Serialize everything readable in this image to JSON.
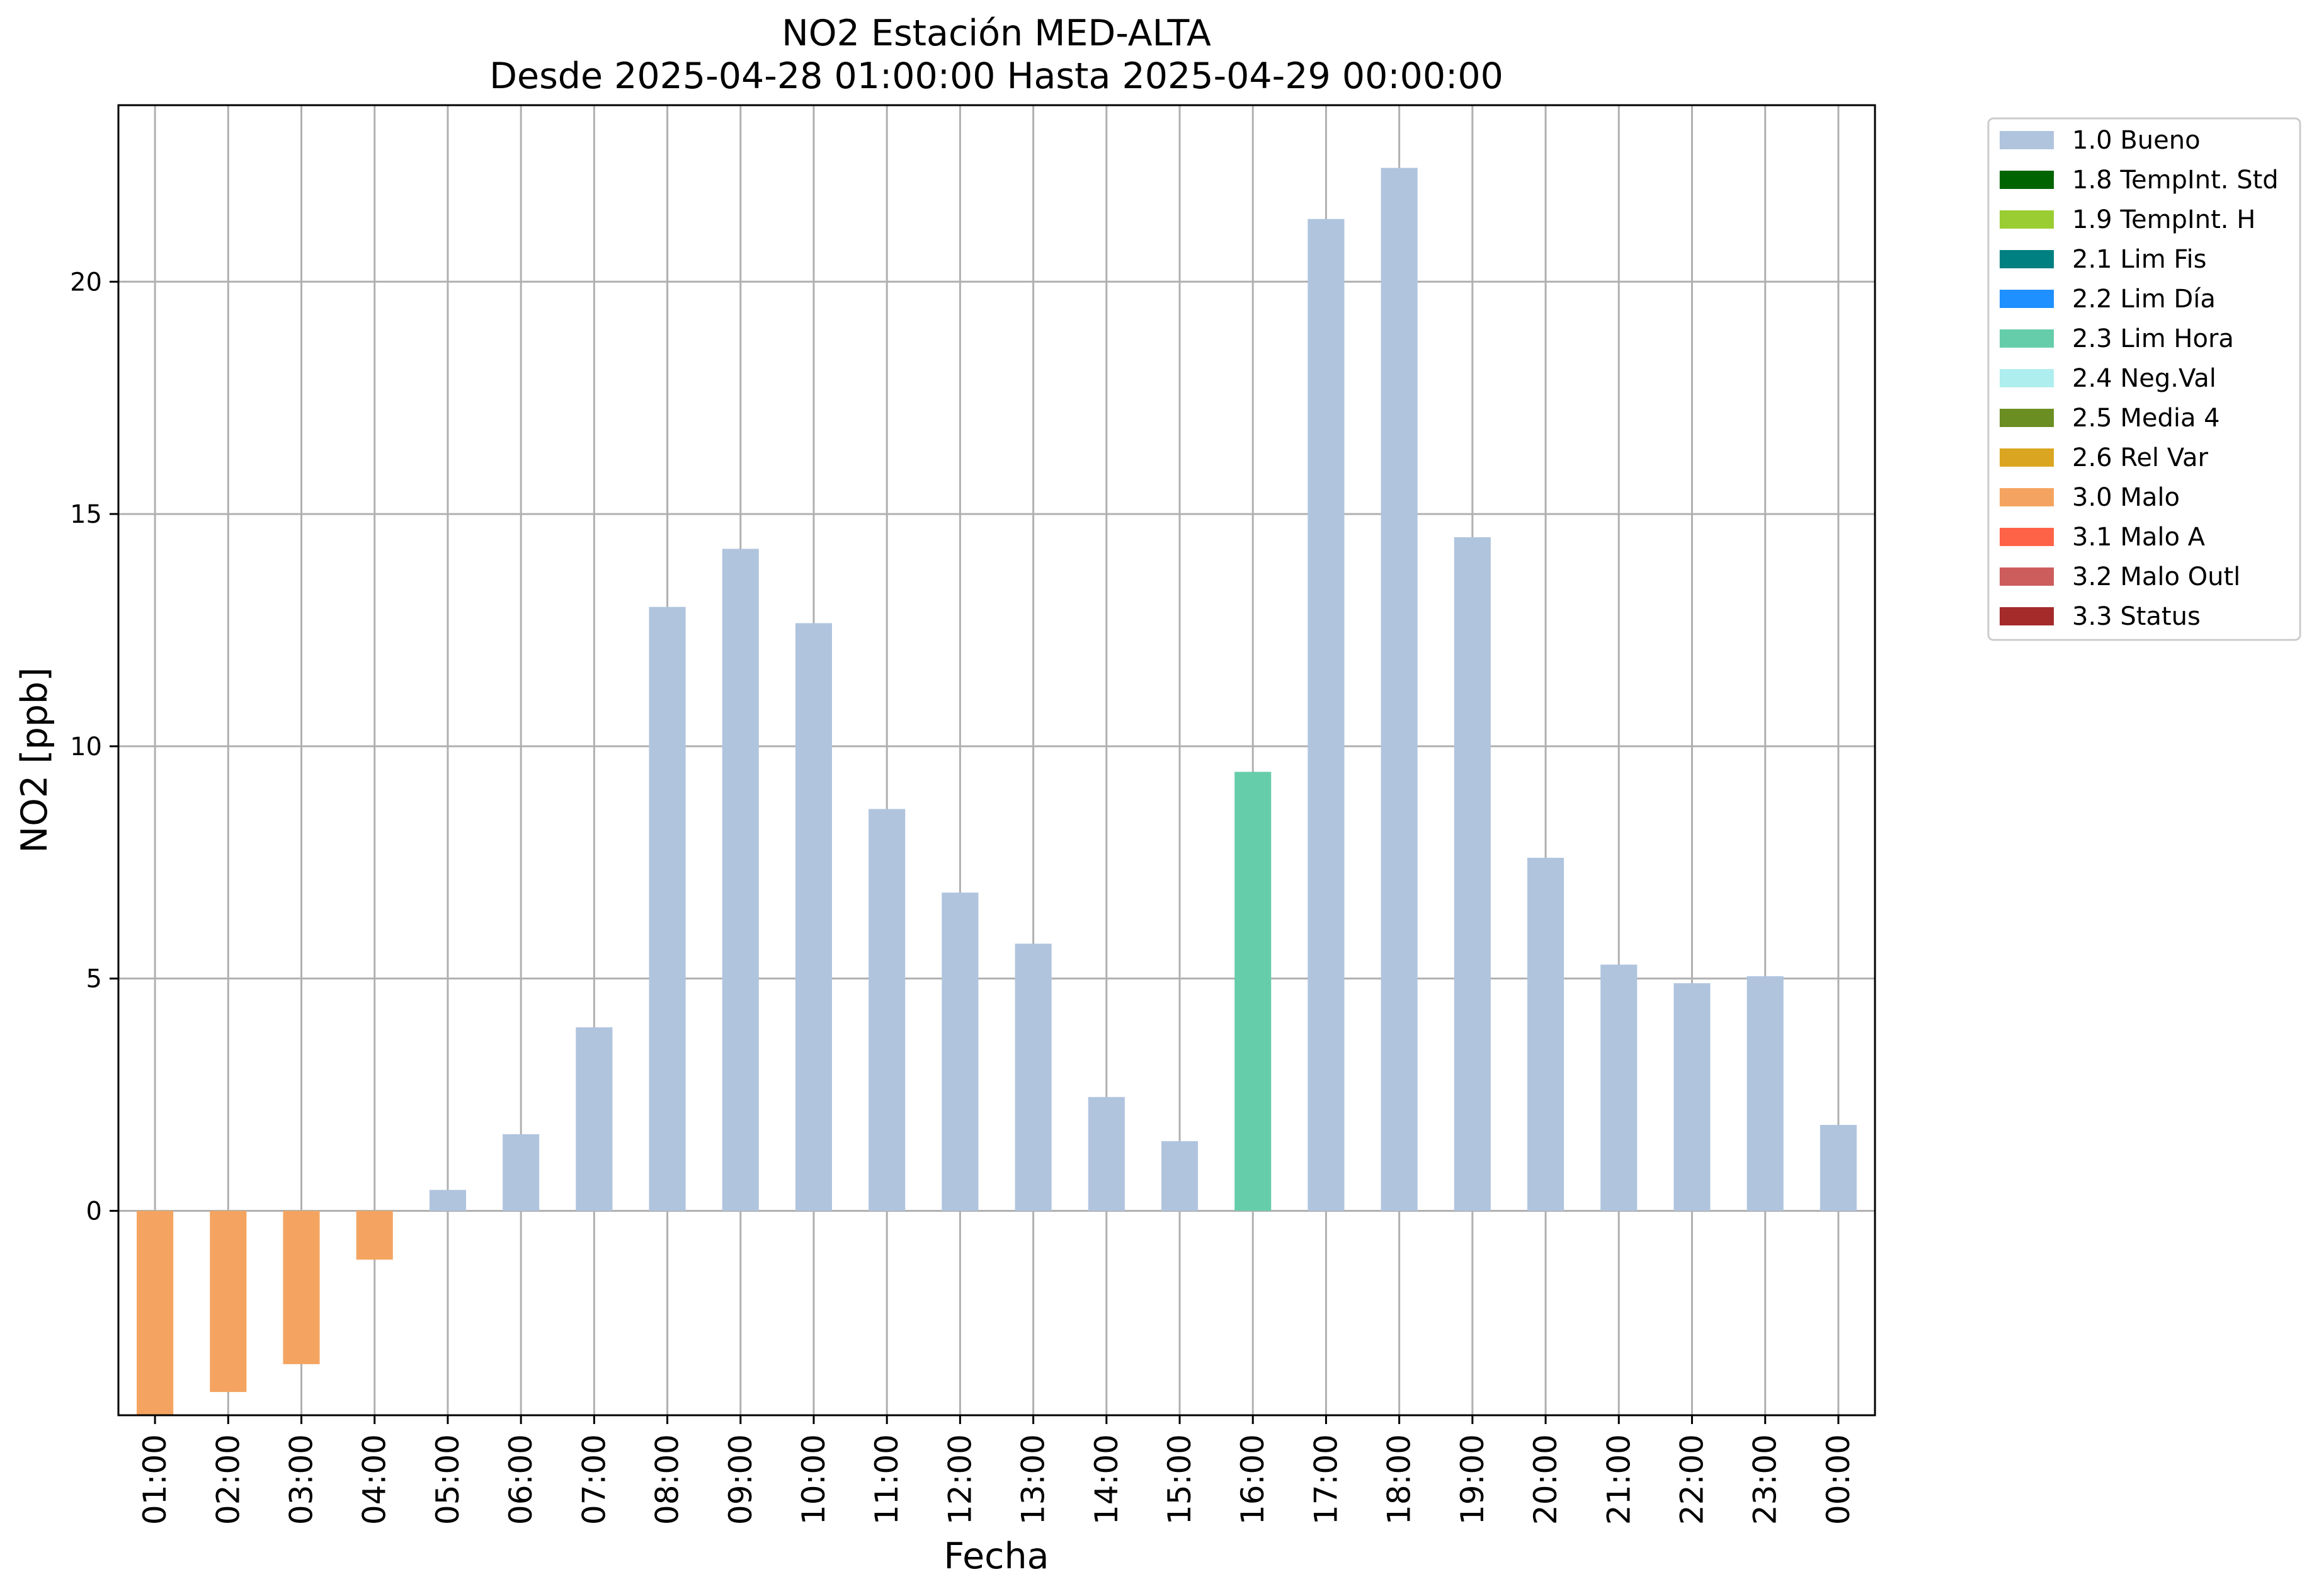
{
  "chart_data": {
    "type": "bar",
    "title": "NO2 Estación MED-ALTA",
    "subtitle": "Desde 2025-04-28 01:00:00 Hasta 2025-04-29 00:00:00",
    "xlabel": "Fecha",
    "ylabel": "NO2 [ppb]",
    "ylim": [
      -4.4,
      23.8
    ],
    "yticks": [
      0,
      5,
      10,
      15,
      20
    ],
    "grid": true,
    "legend_position": "outside-top-right",
    "categories": [
      "01:00",
      "02:00",
      "03:00",
      "04:00",
      "05:00",
      "06:00",
      "07:00",
      "08:00",
      "09:00",
      "10:00",
      "11:00",
      "12:00",
      "13:00",
      "14:00",
      "15:00",
      "16:00",
      "17:00",
      "18:00",
      "19:00",
      "20:00",
      "21:00",
      "22:00",
      "23:00",
      "00:00"
    ],
    "values": [
      -4.4,
      -3.9,
      -3.3,
      -1.05,
      0.45,
      1.65,
      3.95,
      13.0,
      14.25,
      12.65,
      8.65,
      6.85,
      5.75,
      2.45,
      1.5,
      9.45,
      21.35,
      22.45,
      14.5,
      7.6,
      5.3,
      4.9,
      5.05,
      1.85
    ],
    "flags": [
      "3.0 Malo",
      "3.0 Malo",
      "3.0 Malo",
      "3.0 Malo",
      "1.0 Bueno",
      "1.0 Bueno",
      "1.0 Bueno",
      "1.0 Bueno",
      "1.0 Bueno",
      "1.0 Bueno",
      "1.0 Bueno",
      "1.0 Bueno",
      "1.0 Bueno",
      "1.0 Bueno",
      "1.0 Bueno",
      "2.3 Lim Hora",
      "1.0 Bueno",
      "1.0 Bueno",
      "1.0 Bueno",
      "1.0 Bueno",
      "1.0 Bueno",
      "1.0 Bueno",
      "1.0 Bueno",
      "1.0 Bueno"
    ],
    "legend": [
      {
        "label": "1.0 Bueno",
        "color": "#b0c4de"
      },
      {
        "label": "1.8 TempInt. Std",
        "color": "#006400"
      },
      {
        "label": "1.9 TempInt. H",
        "color": "#9acd32"
      },
      {
        "label": "2.1 Lim Fis",
        "color": "#008080"
      },
      {
        "label": "2.2 Lim Día",
        "color": "#1e90ff"
      },
      {
        "label": "2.3 Lim Hora",
        "color": "#66cdaa"
      },
      {
        "label": "2.4 Neg.Val",
        "color": "#afeeee"
      },
      {
        "label": "2.5 Media 4",
        "color": "#6b8e23"
      },
      {
        "label": "2.6 Rel Var",
        "color": "#daa520"
      },
      {
        "label": "3.0 Malo",
        "color": "#f4a460"
      },
      {
        "label": "3.1 Malo A",
        "color": "#ff6347"
      },
      {
        "label": "3.2 Malo Outl",
        "color": "#cd5c5c"
      },
      {
        "label": "3.3 Status",
        "color": "#a52a2a"
      }
    ]
  }
}
